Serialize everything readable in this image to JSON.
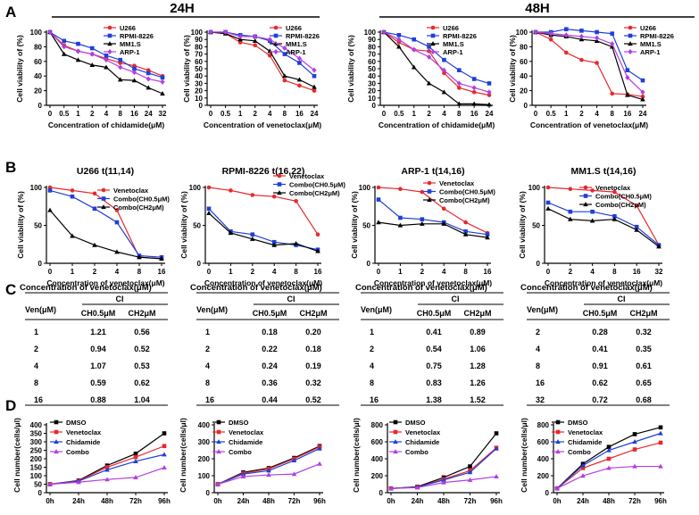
{
  "labels": {
    "panelA": "A",
    "panelB": "B",
    "panelC": "C",
    "panelD": "D",
    "header24": "24H",
    "header48": "48H",
    "ylabelViability": "Cell viability of (%)",
    "ylabelCellNumber": "Cell number(cells/μl)",
    "xlabelChidamide": "Concentration of chidamide(μM)",
    "xlabelVenetoclax": "Concentration of venetoclax(μM)",
    "ciTableHeader": {
      "ven": "Ven(μM)",
      "ci": "CI",
      "c1": "CH0.5μM",
      "c2": "CH2μM"
    }
  },
  "colors": {
    "red": "#e8282b",
    "blue": "#1f3fd8",
    "black": "#000000",
    "purple": "#b23fe0"
  },
  "chart_data": [
    {
      "id": "A1",
      "type": "line",
      "title": "",
      "xlabel": "Concentration of chidamide(μM)",
      "ylabel": "Cell viability of (%)",
      "categories": [
        "0",
        "0.5",
        "1",
        "2",
        "4",
        "8",
        "16",
        "24",
        "32"
      ],
      "ylim": [
        0,
        100
      ],
      "yticks": [
        0,
        20,
        40,
        60,
        80,
        100
      ],
      "legend": "top-right",
      "series": [
        {
          "name": "U266",
          "color": "red",
          "marker": "circle",
          "values": [
            100,
            82,
            74,
            70,
            64,
            58,
            54,
            48,
            40
          ]
        },
        {
          "name": "RPMI-8226",
          "color": "blue",
          "marker": "square",
          "values": [
            100,
            88,
            84,
            78,
            68,
            62,
            50,
            44,
            38
          ]
        },
        {
          "name": "MM1.S",
          "color": "black",
          "marker": "triangle",
          "values": [
            100,
            70,
            62,
            55,
            52,
            35,
            34,
            24,
            16
          ]
        },
        {
          "name": "ARP-1",
          "color": "purple",
          "marker": "diamond",
          "values": [
            100,
            80,
            74,
            70,
            62,
            52,
            45,
            36,
            32
          ]
        }
      ]
    },
    {
      "id": "A2",
      "type": "line",
      "title": "",
      "xlabel": "Concentration of venetoclax(μM)",
      "ylabel": "Cell viability of (%)",
      "categories": [
        "0",
        "0.5",
        "1",
        "2",
        "4",
        "8",
        "16",
        "24"
      ],
      "ylim": [
        0,
        100
      ],
      "yticks": [
        0,
        10,
        20,
        30,
        40,
        50,
        60,
        70,
        80,
        90,
        100
      ],
      "legend": "top-right",
      "series": [
        {
          "name": "U266",
          "color": "red",
          "marker": "circle",
          "values": [
            100,
            98,
            86,
            82,
            68,
            34,
            27,
            20
          ]
        },
        {
          "name": "RPMI-8226",
          "color": "blue",
          "marker": "square",
          "values": [
            100,
            100,
            96,
            94,
            88,
            70,
            58,
            40
          ]
        },
        {
          "name": "MM1.S",
          "color": "black",
          "marker": "triangle",
          "values": [
            100,
            98,
            90,
            88,
            74,
            40,
            35,
            25
          ]
        },
        {
          "name": "ARP-1",
          "color": "purple",
          "marker": "diamond",
          "values": [
            100,
            100,
            94,
            94,
            90,
            78,
            64,
            48
          ]
        }
      ]
    },
    {
      "id": "A3",
      "type": "line",
      "title": "",
      "xlabel": "Concentration of chidamide(μM)",
      "ylabel": "Cell viability of (%)",
      "categories": [
        "0",
        "0.5",
        "1",
        "2",
        "4",
        "8",
        "16",
        "24"
      ],
      "ylim": [
        0,
        100
      ],
      "yticks": [
        0,
        10,
        20,
        30,
        40,
        50,
        60,
        70,
        80,
        90,
        100
      ],
      "legend": "top-right",
      "series": [
        {
          "name": "U266",
          "color": "red",
          "marker": "circle",
          "values": [
            100,
            86,
            76,
            74,
            44,
            24,
            18,
            14
          ]
        },
        {
          "name": "RPMI-8226",
          "color": "blue",
          "marker": "square",
          "values": [
            100,
            96,
            90,
            80,
            62,
            48,
            36,
            30
          ]
        },
        {
          "name": "MM1.S",
          "color": "black",
          "marker": "triangle",
          "values": [
            100,
            80,
            52,
            30,
            18,
            2,
            2,
            1
          ]
        },
        {
          "name": "ARP-1",
          "color": "purple",
          "marker": "diamond",
          "values": [
            100,
            90,
            76,
            66,
            48,
            30,
            24,
            18
          ]
        }
      ]
    },
    {
      "id": "A4",
      "type": "line",
      "title": "",
      "xlabel": "Concentration of venetoclax(μM)",
      "ylabel": "Cell viability of (%)",
      "categories": [
        "0",
        "0.5",
        "1",
        "2",
        "4",
        "8",
        "16",
        "24"
      ],
      "ylim": [
        0,
        100
      ],
      "yticks": [
        0,
        20,
        40,
        60,
        80,
        100
      ],
      "legend": "top-right",
      "series": [
        {
          "name": "U266",
          "color": "red",
          "marker": "circle",
          "values": [
            100,
            90,
            72,
            62,
            58,
            16,
            15,
            12
          ]
        },
        {
          "name": "RPMI-8226",
          "color": "blue",
          "marker": "square",
          "values": [
            100,
            100,
            104,
            102,
            100,
            98,
            48,
            34
          ]
        },
        {
          "name": "MM1.S",
          "color": "black",
          "marker": "triangle",
          "values": [
            100,
            96,
            94,
            90,
            88,
            80,
            14,
            8
          ]
        },
        {
          "name": "ARP-1",
          "color": "purple",
          "marker": "diamond",
          "values": [
            100,
            98,
            96,
            94,
            92,
            84,
            38,
            18
          ]
        }
      ]
    },
    {
      "id": "B1",
      "type": "line",
      "title": "U266 t(11,14)",
      "xlabel": "Concentration of venetoclax(μM)",
      "ylabel": "Cell viability of (%)",
      "categories": [
        "0",
        "1",
        "2",
        "4",
        "8",
        "16"
      ],
      "ylim": [
        0,
        100
      ],
      "yticks": [
        0,
        50,
        100
      ],
      "legend": "top-right",
      "series": [
        {
          "name": "Venetoclax",
          "color": "red",
          "marker": "circle",
          "values": [
            100,
            96,
            92,
            70,
            8,
            6
          ]
        },
        {
          "name": "Combo(CH0.5μM)",
          "color": "blue",
          "marker": "square",
          "values": [
            96,
            88,
            72,
            54,
            10,
            8
          ]
        },
        {
          "name": "Combo(CH2μM)",
          "color": "black",
          "marker": "triangle",
          "values": [
            70,
            36,
            24,
            15,
            8,
            6
          ]
        }
      ]
    },
    {
      "id": "B2",
      "type": "line",
      "title": "RPMI-8226 t(16,22)",
      "xlabel": "Concentration of venetoclax(μM)",
      "ylabel": "Cell viability of (%)",
      "categories": [
        "0",
        "1",
        "2",
        "4",
        "8",
        "16"
      ],
      "ylim": [
        0,
        100
      ],
      "yticks": [
        0,
        50,
        100
      ],
      "legend": "top-right",
      "series": [
        {
          "name": "Venetoclax",
          "color": "red",
          "marker": "circle",
          "values": [
            100,
            96,
            90,
            88,
            82,
            38
          ]
        },
        {
          "name": "Combo(CH0.5μM)",
          "color": "blue",
          "marker": "square",
          "values": [
            72,
            42,
            38,
            28,
            24,
            18
          ]
        },
        {
          "name": "Combo(CH2μM)",
          "color": "black",
          "marker": "triangle",
          "values": [
            66,
            40,
            32,
            24,
            26,
            16
          ]
        }
      ]
    },
    {
      "id": "B3",
      "type": "line",
      "title": "ARP-1 t(14,16)",
      "xlabel": "Concentration of venetoclax(μM)",
      "ylabel": "Cell viability of (%)",
      "categories": [
        "0",
        "1",
        "2",
        "4",
        "8",
        "16"
      ],
      "ylim": [
        0,
        100
      ],
      "yticks": [
        0,
        50,
        100
      ],
      "legend": "top-right",
      "series": [
        {
          "name": "Venetoclax",
          "color": "red",
          "marker": "circle",
          "values": [
            100,
            98,
            94,
            72,
            54,
            40
          ]
        },
        {
          "name": "Combo(CH0.5μM)",
          "color": "blue",
          "marker": "square",
          "values": [
            84,
            60,
            58,
            54,
            42,
            38
          ]
        },
        {
          "name": "Combo(CH2μM)",
          "color": "black",
          "marker": "triangle",
          "values": [
            54,
            50,
            52,
            52,
            38,
            34
          ]
        }
      ]
    },
    {
      "id": "B4",
      "type": "line",
      "title": "MM1.S t(14,16)",
      "xlabel": "Concentration of venetoclax(μM)",
      "ylabel": "Cell viability of (%)",
      "categories": [
        "0",
        "2",
        "4",
        "8",
        "16",
        "32"
      ],
      "ylim": [
        0,
        100
      ],
      "yticks": [
        0,
        50,
        100
      ],
      "legend": "top-right",
      "series": [
        {
          "name": "Venetoclax",
          "color": "red",
          "marker": "circle",
          "values": [
            100,
            98,
            96,
            94,
            76,
            24
          ]
        },
        {
          "name": "Combo(CH0.5μM)",
          "color": "blue",
          "marker": "square",
          "values": [
            80,
            68,
            68,
            62,
            48,
            24
          ]
        },
        {
          "name": "Combo(CH2μM)",
          "color": "black",
          "marker": "triangle",
          "values": [
            72,
            58,
            56,
            58,
            44,
            22
          ]
        }
      ]
    },
    {
      "id": "C1",
      "type": "table",
      "columns": [
        "Ven(μM)",
        "CH0.5μM",
        "CH2μM"
      ],
      "rows": [
        [
          "1",
          "1.21",
          "0.56"
        ],
        [
          "2",
          "0.94",
          "0.52"
        ],
        [
          "4",
          "1.07",
          "0.53"
        ],
        [
          "8",
          "0.59",
          "0.62"
        ],
        [
          "16",
          "0.88",
          "1.04"
        ]
      ]
    },
    {
      "id": "C2",
      "type": "table",
      "columns": [
        "Ven(μM)",
        "CH0.5μM",
        "CH2μM"
      ],
      "rows": [
        [
          "1",
          "0.18",
          "0.20"
        ],
        [
          "2",
          "0.22",
          "0.18"
        ],
        [
          "4",
          "0.24",
          "0.19"
        ],
        [
          "8",
          "0.36",
          "0.32"
        ],
        [
          "16",
          "0.44",
          "0.52"
        ]
      ]
    },
    {
      "id": "C3",
      "type": "table",
      "columns": [
        "Ven(μM)",
        "CH0.5μM",
        "CH2μM"
      ],
      "rows": [
        [
          "1",
          "0.41",
          "0.89"
        ],
        [
          "2",
          "0.54",
          "1.06"
        ],
        [
          "4",
          "0.75",
          "1.28"
        ],
        [
          "8",
          "0.83",
          "1.26"
        ],
        [
          "16",
          "1.38",
          "1.52"
        ]
      ]
    },
    {
      "id": "C4",
      "type": "table",
      "columns": [
        "Ven(μM)",
        "CH0.5μM",
        "CH2μM"
      ],
      "rows": [
        [
          "2",
          "0.28",
          "0.32"
        ],
        [
          "4",
          "0.41",
          "0.35"
        ],
        [
          "8",
          "0.91",
          "0.61"
        ],
        [
          "16",
          "0.62",
          "0.65"
        ],
        [
          "32",
          "0.72",
          "0.68"
        ]
      ]
    },
    {
      "id": "D1",
      "type": "line",
      "title": "",
      "xlabel": "",
      "ylabel": "Cell number(cells/μl)",
      "categories": [
        "0h",
        "24h",
        "48h",
        "72h",
        "96h"
      ],
      "ylim": [
        0,
        400
      ],
      "yticks": [
        0,
        50,
        100,
        150,
        200,
        250,
        300,
        350,
        400
      ],
      "legend": "top-left",
      "series": [
        {
          "name": "DMSO",
          "color": "black",
          "marker": "square",
          "values": [
            50,
            72,
            160,
            230,
            350
          ]
        },
        {
          "name": "Venetoclax",
          "color": "red",
          "marker": "square",
          "values": [
            50,
            70,
            150,
            210,
            275
          ]
        },
        {
          "name": "Chidamide",
          "color": "blue",
          "marker": "triangle",
          "values": [
            50,
            68,
            135,
            185,
            225
          ]
        },
        {
          "name": "Combo",
          "color": "purple",
          "marker": "triangle",
          "values": [
            50,
            62,
            78,
            90,
            148
          ]
        }
      ]
    },
    {
      "id": "D2",
      "type": "line",
      "title": "",
      "xlabel": "",
      "ylabel": "Cell number(cells/μl)",
      "categories": [
        "0h",
        "24h",
        "48h",
        "72h",
        "96h"
      ],
      "ylim": [
        0,
        400
      ],
      "yticks": [
        0,
        100,
        200,
        300,
        400
      ],
      "legend": "top-left",
      "series": [
        {
          "name": "DMSO",
          "color": "black",
          "marker": "square",
          "values": [
            50,
            120,
            145,
            205,
            275
          ]
        },
        {
          "name": "Venetoclax",
          "color": "red",
          "marker": "square",
          "values": [
            50,
            115,
            140,
            200,
            270
          ]
        },
        {
          "name": "Chidamide",
          "color": "blue",
          "marker": "triangle",
          "values": [
            50,
            110,
            130,
            190,
            260
          ]
        },
        {
          "name": "Combo",
          "color": "purple",
          "marker": "triangle",
          "values": [
            50,
            95,
            105,
            110,
            170
          ]
        }
      ]
    },
    {
      "id": "D3",
      "type": "line",
      "title": "",
      "xlabel": "",
      "ylabel": "Cell number(cells/μl)",
      "categories": [
        "0h",
        "24h",
        "48h",
        "72h",
        "96h"
      ],
      "ylim": [
        0,
        800
      ],
      "yticks": [
        0,
        200,
        400,
        600,
        800
      ],
      "legend": "top-left",
      "series": [
        {
          "name": "DMSO",
          "color": "black",
          "marker": "square",
          "values": [
            50,
            70,
            180,
            310,
            700
          ]
        },
        {
          "name": "Venetoclax",
          "color": "red",
          "marker": "square",
          "values": [
            50,
            65,
            160,
            260,
            530
          ]
        },
        {
          "name": "Chidamide",
          "color": "blue",
          "marker": "triangle",
          "values": [
            50,
            65,
            150,
            240,
            520
          ]
        },
        {
          "name": "Combo",
          "color": "purple",
          "marker": "triangle",
          "values": [
            50,
            60,
            120,
            150,
            190
          ]
        }
      ]
    },
    {
      "id": "D4",
      "type": "line",
      "title": "",
      "xlabel": "",
      "ylabel": "Cell number(cells/μl)",
      "categories": [
        "0h",
        "24h",
        "48h",
        "72h",
        "96h"
      ],
      "ylim": [
        0,
        800
      ],
      "yticks": [
        0,
        200,
        400,
        600,
        800
      ],
      "legend": "top-left",
      "series": [
        {
          "name": "DMSO",
          "color": "black",
          "marker": "square",
          "values": [
            50,
            340,
            540,
            690,
            770
          ]
        },
        {
          "name": "Venetoclax",
          "color": "red",
          "marker": "square",
          "values": [
            50,
            290,
            400,
            510,
            590
          ]
        },
        {
          "name": "Chidamide",
          "color": "blue",
          "marker": "triangle",
          "values": [
            50,
            320,
            500,
            600,
            700
          ]
        },
        {
          "name": "Combo",
          "color": "purple",
          "marker": "triangle",
          "values": [
            50,
            200,
            290,
            310,
            310
          ]
        }
      ]
    }
  ]
}
